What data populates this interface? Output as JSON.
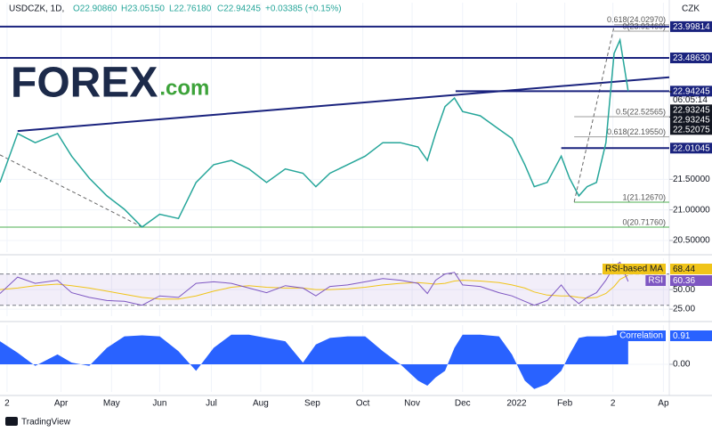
{
  "header": {
    "symbol": "USDCZK, 1D,",
    "open": "O22.90860",
    "high": "H23.05150",
    "low": "L22.76180",
    "close": "C22.94245",
    "change": "+0.03385 (+0.15%)",
    "currency": "CZK",
    "countdown": "06:05:14"
  },
  "logo": {
    "brand": "FOREX",
    "suffix": ".com"
  },
  "footer": {
    "brand": "TradingView"
  },
  "chart_data": [
    {
      "type": "line",
      "color": "#26a69a",
      "x": [
        0,
        1.5,
        3,
        4.9,
        6.1,
        7.6,
        9.1,
        10.6,
        12.1,
        13.6,
        15.2,
        16.7,
        18.2,
        19.7,
        21.2,
        22.7,
        24.3,
        25.8,
        26.9,
        28.1,
        29.6,
        31.1,
        32.6,
        34.1,
        35.6,
        36.4,
        37.1,
        37.9,
        38.7,
        39.4,
        40.9,
        42.5,
        43.6,
        44.7,
        45.5,
        46.6,
        47.8,
        48.5,
        49.3,
        50,
        50.8,
        51.6,
        52.3,
        52.8,
        53.5
      ],
      "values": [
        21.45,
        22.25,
        22.1,
        22.25,
        21.88,
        21.52,
        21.23,
        21.01,
        20.72,
        20.93,
        20.86,
        21.45,
        21.74,
        21.81,
        21.67,
        21.45,
        21.67,
        21.6,
        21.38,
        21.6,
        21.74,
        21.88,
        22.1,
        22.1,
        22.03,
        21.81,
        22.25,
        22.69,
        22.83,
        22.61,
        22.54,
        22.32,
        22.17,
        21.74,
        21.38,
        21.45,
        21.88,
        21.52,
        21.23,
        21.38,
        21.45,
        22.1,
        23.56,
        23.78,
        22.94245
      ],
      "xlim": [
        0,
        57
      ],
      "ylim": [
        20.31,
        24.39
      ],
      "yticks": [
        {
          "value": 20.5,
          "label": "20.50000"
        },
        {
          "value": 21,
          "label": "21.00000"
        },
        {
          "value": 21.5,
          "label": "21.50000"
        }
      ],
      "hlines": [
        {
          "value": 23.99814,
          "label": "23.99814",
          "from": 0,
          "color": "#1a237e"
        },
        {
          "value": 23.4863,
          "label": "23.48630",
          "from": 0,
          "color": "#1a237e"
        },
        {
          "value": 22.94245,
          "label": "22.94245",
          "from": 38.8,
          "color": "#1a237e"
        },
        {
          "value": 22.01045,
          "label": "22.01045",
          "from": 47.8,
          "color": "#1a237e"
        }
      ],
      "axis_labels": [
        {
          "value": 22.93245,
          "label": "22.93245"
        },
        {
          "value": 22.93245,
          "label": "22.93245"
        },
        {
          "value": 22.52075,
          "label": "22.52075"
        }
      ],
      "fib": [
        {
          "value": 24.0297,
          "label": "0.618(24.02970)",
          "from": 52.3,
          "color": "#9e9e9e"
        },
        {
          "value": 23.9246,
          "label": "0(23.92460)",
          "from": 52.3,
          "color": "#9e9e9e"
        },
        {
          "value": 22.52565,
          "label": "0.5(22.52565)",
          "from": 48.9,
          "color": "#9e9e9e"
        },
        {
          "value": 22.1955,
          "label": "0.618(22.19550)",
          "from": 48.9,
          "color": "#9e9e9e"
        },
        {
          "value": 21.1267,
          "label": "1(21.12670)",
          "from": 48.9,
          "color": "#4caf50"
        },
        {
          "value": 20.7176,
          "label": "0(20.71760)",
          "from": 0,
          "color": "#4caf50"
        }
      ],
      "trendlines": [
        {
          "x": [
            1.5,
            57
          ],
          "y": [
            22.29,
            23.17
          ],
          "color": "#1a237e",
          "dash": false
        },
        {
          "x": [
            0,
            12.1
          ],
          "y": [
            21.9,
            20.72
          ],
          "color": "#666666",
          "dash": true
        },
        {
          "x": [
            48.9,
            52.3
          ],
          "y": [
            21.13,
            24.0
          ],
          "color": "#666666",
          "dash": true
        }
      ]
    },
    {
      "type": "line",
      "x": [
        0,
        1.5,
        3,
        4.9,
        6.1,
        7.6,
        9.1,
        10.6,
        12.1,
        13.6,
        15.2,
        16.7,
        18.2,
        19.7,
        21.2,
        22.7,
        24.3,
        25.8,
        26.9,
        28.1,
        29.6,
        31.1,
        32.6,
        34.1,
        35.6,
        36.4,
        37.1,
        37.9,
        38.7,
        39.4,
        40.9,
        42.5,
        43.6,
        44.7,
        45.5,
        46.6,
        47.8,
        48.5,
        49.3,
        50,
        50.8,
        51.6,
        52.3,
        52.8,
        53.5
      ],
      "xlim": [
        0,
        57
      ],
      "ylim": [
        16,
        90
      ],
      "yticks": [
        {
          "value": 50,
          "label": "50.00"
        },
        {
          "value": 25,
          "label": "25.00"
        }
      ],
      "bands": [
        30,
        70
      ],
      "series": [
        {
          "name": "RSI-based MA",
          "color": "#f0c419",
          "values": [
            50,
            52,
            55,
            57,
            55,
            52,
            48,
            44,
            40,
            38,
            38,
            42,
            48,
            53,
            55,
            53,
            52,
            52,
            50,
            50,
            51,
            53,
            56,
            58,
            59,
            58,
            57,
            58,
            61,
            62,
            61,
            59,
            56,
            52,
            47,
            43,
            42,
            42,
            40,
            39,
            40,
            45,
            54,
            63,
            68.44
          ]
        },
        {
          "name": "RSI",
          "color": "#7e57c2",
          "values": [
            45,
            66,
            58,
            62,
            46,
            40,
            36,
            35,
            30,
            42,
            40,
            58,
            60,
            58,
            52,
            46,
            55,
            52,
            42,
            54,
            56,
            60,
            64,
            62,
            58,
            45,
            62,
            70,
            72,
            56,
            54,
            46,
            42,
            35,
            30,
            36,
            56,
            42,
            32,
            40,
            46,
            62,
            80,
            85,
            60.36
          ]
        }
      ]
    },
    {
      "type": "area",
      "x": [
        0,
        1.5,
        3,
        4.9,
        6.1,
        7.6,
        9.1,
        10.6,
        12.1,
        13.6,
        15.2,
        16.7,
        18.2,
        19.7,
        21.2,
        22.7,
        24.3,
        25.8,
        26.9,
        28.1,
        29.6,
        31.1,
        32.6,
        34.1,
        35.6,
        36.4,
        37.1,
        37.9,
        38.7,
        39.4,
        40.9,
        42.5,
        43.6,
        44.7,
        45.5,
        46.6,
        47.8,
        48.5,
        49.3,
        50,
        50.8,
        51.6,
        52.3,
        52.8,
        53.5
      ],
      "xlim": [
        0,
        57
      ],
      "ylim": [
        -0.84,
        1.19
      ],
      "yticks": [
        {
          "value": 0,
          "label": "0.00"
        }
      ],
      "xticks": [
        {
          "value": 0.6,
          "label": "2"
        },
        {
          "value": 5.2,
          "label": "Apr"
        },
        {
          "value": 9.5,
          "label": "May"
        },
        {
          "value": 13.6,
          "label": "Jun"
        },
        {
          "value": 18,
          "label": "Jul"
        },
        {
          "value": 22.2,
          "label": "Aug"
        },
        {
          "value": 26.6,
          "label": "Sep"
        },
        {
          "value": 30.9,
          "label": "Oct"
        },
        {
          "value": 35.1,
          "label": "Nov"
        },
        {
          "value": 39.4,
          "label": "Dec"
        },
        {
          "value": 44,
          "label": "2022"
        },
        {
          "value": 48.1,
          "label": "Feb"
        },
        {
          "value": 52.2,
          "label": "2"
        },
        {
          "value": 56.5,
          "label": "Ap"
        }
      ],
      "series": [
        {
          "name": "Correlation",
          "color": "#2962ff",
          "values": [
            0.7,
            0.35,
            -0.05,
            0.3,
            0.05,
            -0.05,
            0.5,
            0.85,
            0.88,
            0.85,
            0.4,
            -0.2,
            0.5,
            0.9,
            0.9,
            0.8,
            0.7,
            0.05,
            0.6,
            0.8,
            0.85,
            0.85,
            0.4,
            0,
            -0.5,
            -0.65,
            -0.4,
            -0.2,
            0.5,
            0.9,
            0.9,
            0.85,
            0.3,
            -0.5,
            -0.75,
            -0.6,
            -0.2,
            0.3,
            0.8,
            0.85,
            0.85,
            0.85,
            0.88,
            0.9,
            0.91
          ]
        }
      ]
    }
  ]
}
